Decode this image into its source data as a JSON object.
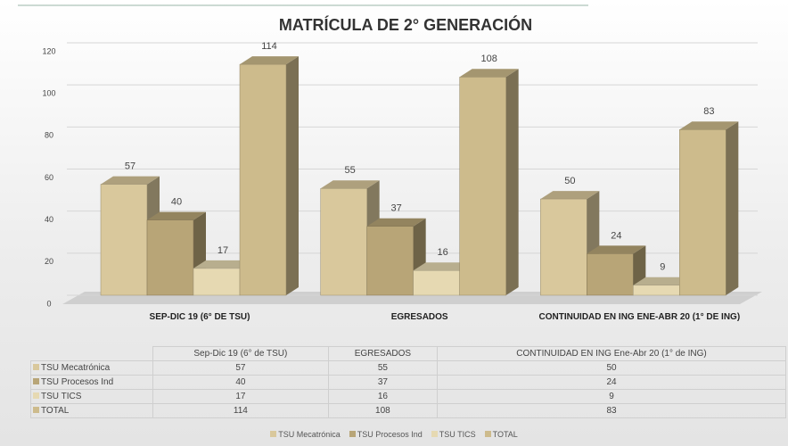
{
  "chart_data": {
    "type": "bar",
    "title": "MATRÍCULA DE 2° GENERACIÓN",
    "categories": [
      "SEP-DIC 19 (6° DE TSU)",
      "EGRESADOS",
      "CONTINUIDAD EN ING ENE-ABR 20 (1° DE ING)"
    ],
    "table_categories": [
      "Sep-Dic 19 (6° de TSU)",
      "EGRESADOS",
      "CONTINUIDAD EN ING Ene-Abr 20 (1° de ING)"
    ],
    "series": [
      {
        "name": "TSU Mecatrónica",
        "color": "#d9c89c",
        "values": [
          57,
          55,
          50
        ]
      },
      {
        "name": "TSU Procesos Ind",
        "color": "#b8a577",
        "values": [
          40,
          37,
          24
        ]
      },
      {
        "name": "TSU TICS",
        "color": "#e6d9b2",
        "values": [
          17,
          16,
          9
        ]
      },
      {
        "name": "TOTAL",
        "color": "#cdbb8c",
        "values": [
          114,
          108,
          83
        ]
      }
    ],
    "ylim": [
      0,
      120
    ],
    "yticks": [
      0,
      20,
      40,
      60,
      80,
      100,
      120
    ],
    "grid": true
  }
}
